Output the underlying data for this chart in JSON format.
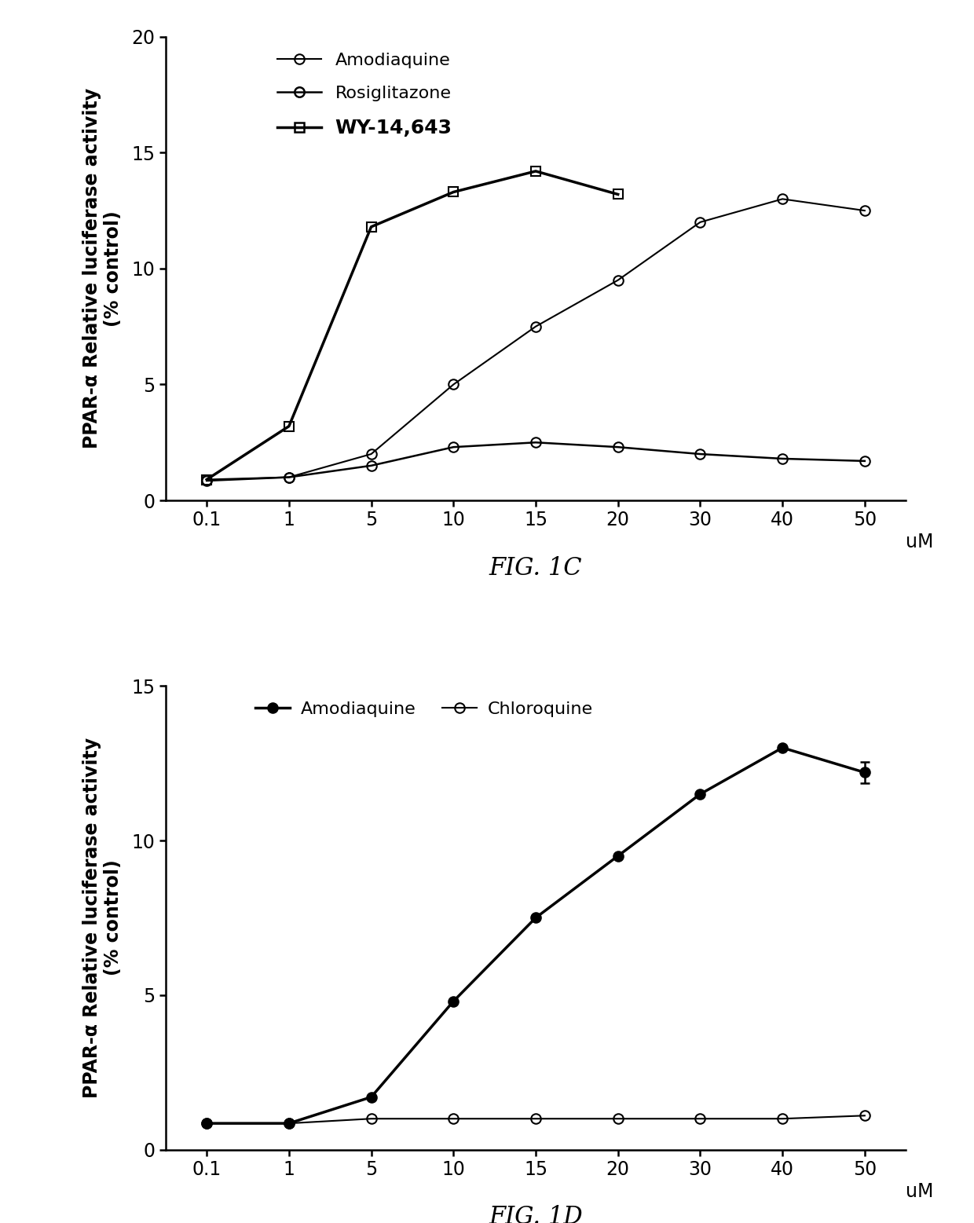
{
  "fig1c": {
    "title": "FIG. 1C",
    "ylabel": "PPAR-α Relative luciferase activity\n(% control)",
    "xlabel": "uM",
    "ylim": [
      0,
      20
    ],
    "yticks": [
      0,
      5,
      10,
      15,
      20
    ],
    "xtick_labels": [
      "0.1",
      "1",
      "5",
      "10",
      "15",
      "20",
      "30",
      "40",
      "50"
    ],
    "xtick_pos": [
      0,
      1,
      2,
      3,
      4,
      5,
      6,
      7,
      8
    ],
    "series": [
      {
        "label": "Amodiaquine",
        "x": [
          0,
          1,
          2,
          3,
          4,
          5,
          6,
          7,
          8
        ],
        "y": [
          0.9,
          1.0,
          2.0,
          5.0,
          7.5,
          9.5,
          12.0,
          13.0,
          12.5
        ],
        "color": "#000000",
        "marker": "o",
        "markersize": 9,
        "linewidth": 1.5,
        "fillstyle": "none",
        "linestyle": "-"
      },
      {
        "label": "Rosiglitazone",
        "x": [
          0,
          1,
          2,
          3,
          4,
          5,
          6,
          7,
          8
        ],
        "y": [
          0.85,
          1.0,
          1.5,
          2.3,
          2.5,
          2.3,
          2.0,
          1.8,
          1.7
        ],
        "color": "#000000",
        "marker": "o",
        "markersize": 9,
        "linewidth": 1.8,
        "fillstyle": "none",
        "linestyle": "-"
      },
      {
        "label": "WY-14,643",
        "x": [
          0,
          1,
          2,
          3,
          4,
          5
        ],
        "y": [
          0.9,
          3.2,
          11.8,
          13.3,
          14.2,
          13.2
        ],
        "color": "#000000",
        "marker": "s",
        "markersize": 9,
        "linewidth": 2.5,
        "fillstyle": "none",
        "linestyle": "-"
      }
    ]
  },
  "fig1d": {
    "title": "FIG. 1D",
    "ylabel": "PPAR-α Relative luciferase activity\n(% control)",
    "xlabel": "uM",
    "ylim": [
      0,
      15
    ],
    "yticks": [
      0,
      5,
      10,
      15
    ],
    "xtick_labels": [
      "0.1",
      "1",
      "5",
      "10",
      "15",
      "20",
      "30",
      "40",
      "50"
    ],
    "xtick_pos": [
      0,
      1,
      2,
      3,
      4,
      5,
      6,
      7,
      8
    ],
    "series": [
      {
        "label": "Amodiaquine",
        "x": [
          0,
          1,
          2,
          3,
          4,
          5,
          6,
          7,
          8
        ],
        "y": [
          0.85,
          0.85,
          1.7,
          4.8,
          7.5,
          9.5,
          11.5,
          13.0,
          12.2
        ],
        "yerr": [
          0.0,
          0.0,
          0.0,
          0.0,
          0.0,
          0.0,
          0.0,
          0.0,
          0.35
        ],
        "color": "#000000",
        "marker": "o",
        "markersize": 9,
        "linewidth": 2.5,
        "fillstyle": "full",
        "linestyle": "-"
      },
      {
        "label": "Chloroquine",
        "x": [
          0,
          1,
          2,
          3,
          4,
          5,
          6,
          7,
          8
        ],
        "y": [
          0.85,
          0.85,
          1.0,
          1.0,
          1.0,
          1.0,
          1.0,
          1.0,
          1.1
        ],
        "color": "#000000",
        "marker": "o",
        "markersize": 9,
        "linewidth": 1.5,
        "fillstyle": "none",
        "linestyle": "-"
      }
    ]
  },
  "background_color": "#ffffff",
  "text_color": "#000000"
}
